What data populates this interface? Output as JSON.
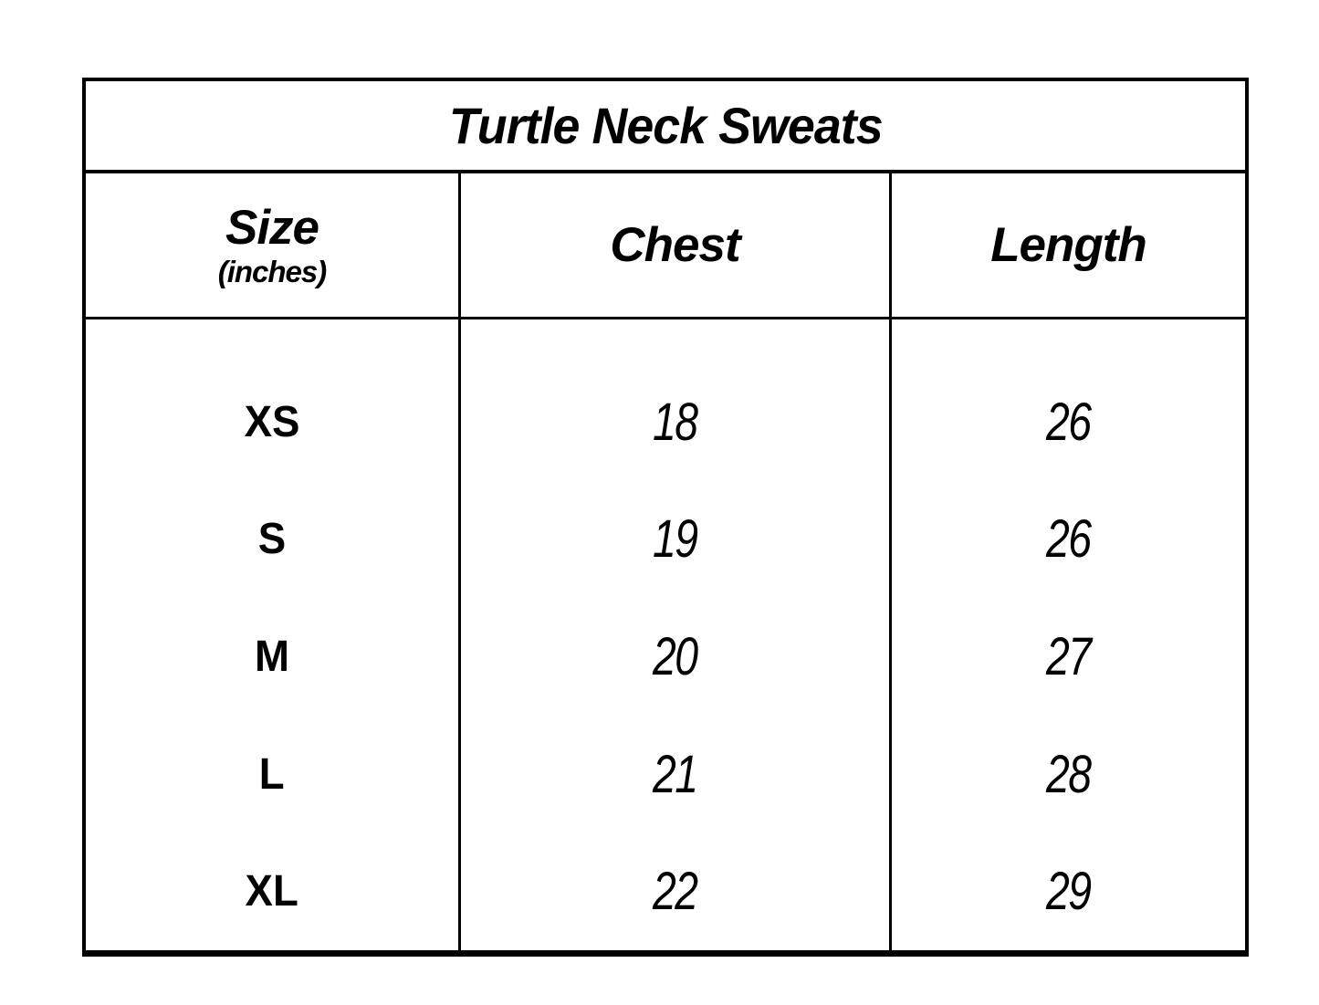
{
  "chart_data": {
    "type": "table",
    "title": "Turtle Neck Sweats",
    "columns": [
      "Size (inches)",
      "Chest",
      "Length"
    ],
    "rows": [
      [
        "XS",
        18,
        26
      ],
      [
        "S",
        19,
        26
      ],
      [
        "M",
        20,
        27
      ],
      [
        "L",
        21,
        28
      ],
      [
        "XL",
        22,
        29
      ]
    ],
    "units": "inches",
    "layout_hints": {
      "title_position": "top-center",
      "grid": "outer border, title rule, header rule, two vertical column dividers, no horizontal rules between body rows"
    }
  },
  "table": {
    "title": "Turtle Neck Sweats",
    "header": {
      "size_label": "Size",
      "size_sublabel": "(inches)",
      "chest_label": "Chest",
      "length_label": "Length"
    },
    "rows": [
      {
        "size": "XS",
        "chest": "18",
        "length": "26"
      },
      {
        "size": "S",
        "chest": "19",
        "length": "26"
      },
      {
        "size": "M",
        "chest": "20",
        "length": "27"
      },
      {
        "size": "L",
        "chest": "21",
        "length": "28"
      },
      {
        "size": "XL",
        "chest": "22",
        "length": "29"
      }
    ],
    "colors": {
      "border": "#000000",
      "text": "#000000",
      "background": "#ffffff"
    }
  }
}
